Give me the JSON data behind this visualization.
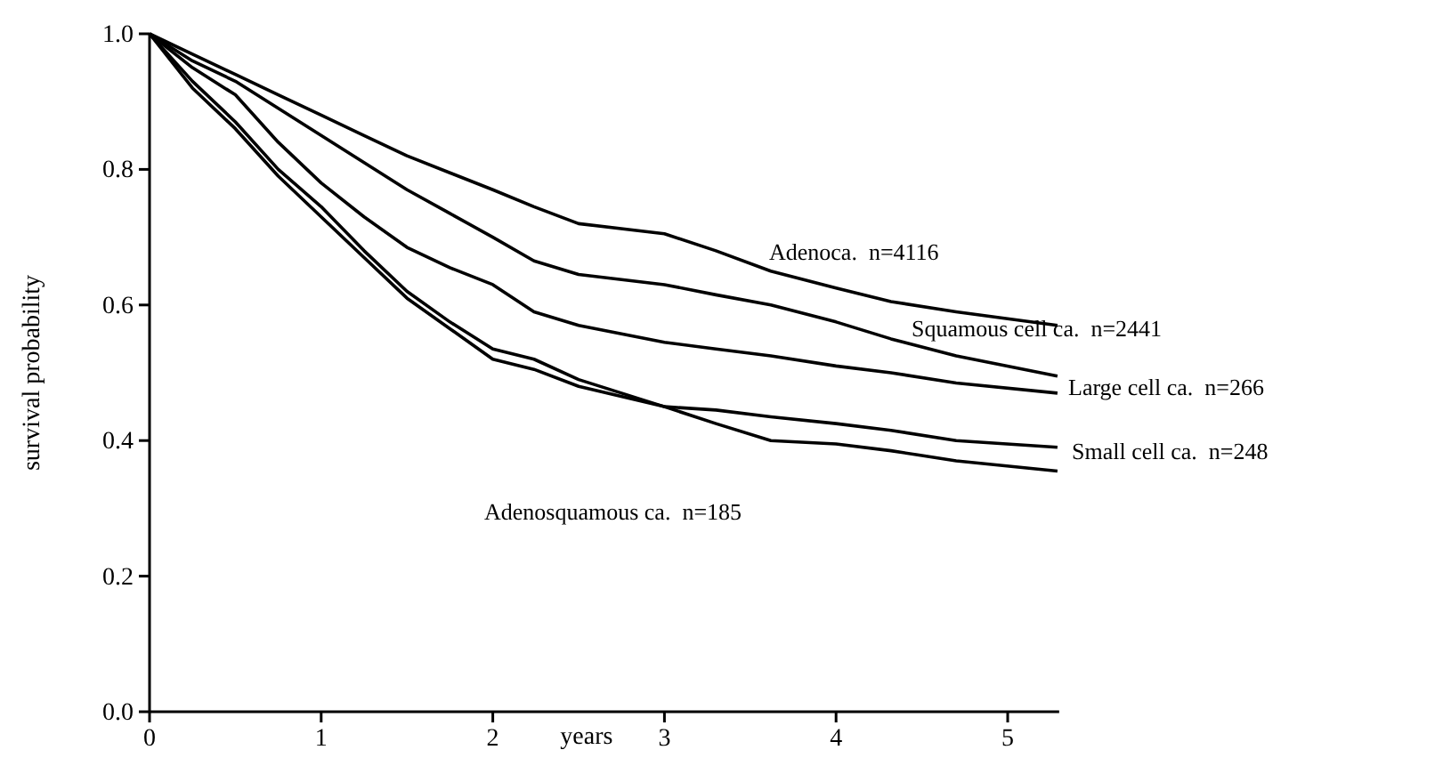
{
  "chart_data": {
    "type": "line",
    "xlabel": "years",
    "ylabel": "survival probability",
    "xlim": [
      0,
      5.3
    ],
    "xticks": [
      0,
      1,
      2,
      3,
      4,
      5
    ],
    "ylim": [
      0,
      1
    ],
    "yticks": [
      {
        "value": 0,
        "label": "0.0"
      },
      0.2,
      0.4,
      0.6,
      0.8,
      {
        "value": 1,
        "label": "1.0"
      }
    ],
    "grid": false,
    "marker": "none",
    "line_style": "solid",
    "x": [
      0,
      0.25,
      0.5,
      0.75,
      1,
      1.25,
      1.5,
      1.75,
      2,
      2.24,
      2.5,
      3,
      3.3,
      3.62,
      4,
      4.32,
      4.7,
      5.29
    ],
    "series": [
      {
        "name": "Adenoca.  n=4116",
        "color": "#000000",
        "values": [
          1,
          0.97,
          0.94,
          0.91,
          0.88,
          0.85,
          0.82,
          0.795,
          0.77,
          0.745,
          0.72,
          0.705,
          0.68,
          0.65,
          0.625,
          0.605,
          0.59,
          0.57
        ]
      },
      {
        "name": "Squamous cell ca.  n=2441",
        "color": "#000000",
        "values": [
          1,
          0.96,
          0.93,
          0.89,
          0.85,
          0.81,
          0.77,
          0.735,
          0.7,
          0.665,
          0.645,
          0.63,
          0.615,
          0.6,
          0.575,
          0.55,
          0.525,
          0.495
        ]
      },
      {
        "name": "Large cell ca.  n=266",
        "color": "#000000",
        "values": [
          1,
          0.95,
          0.91,
          0.84,
          0.78,
          0.73,
          0.685,
          0.655,
          0.63,
          0.59,
          0.57,
          0.545,
          0.535,
          0.525,
          0.51,
          0.5,
          0.485,
          0.47
        ]
      },
      {
        "name": "Small cell ca.  n=248",
        "color": "#000000",
        "values": [
          1,
          0.93,
          0.87,
          0.8,
          0.745,
          0.68,
          0.62,
          0.575,
          0.535,
          0.52,
          0.49,
          0.45,
          0.445,
          0.435,
          0.425,
          0.415,
          0.4,
          0.39
        ]
      },
      {
        "name": "Adenosquamous ca.  n=185",
        "color": "#000000",
        "values": [
          1,
          0.92,
          0.86,
          0.79,
          0.73,
          0.67,
          0.61,
          0.565,
          0.52,
          0.505,
          0.48,
          0.45,
          0.425,
          0.4,
          0.395,
          0.385,
          0.37,
          0.355
        ]
      }
    ]
  }
}
